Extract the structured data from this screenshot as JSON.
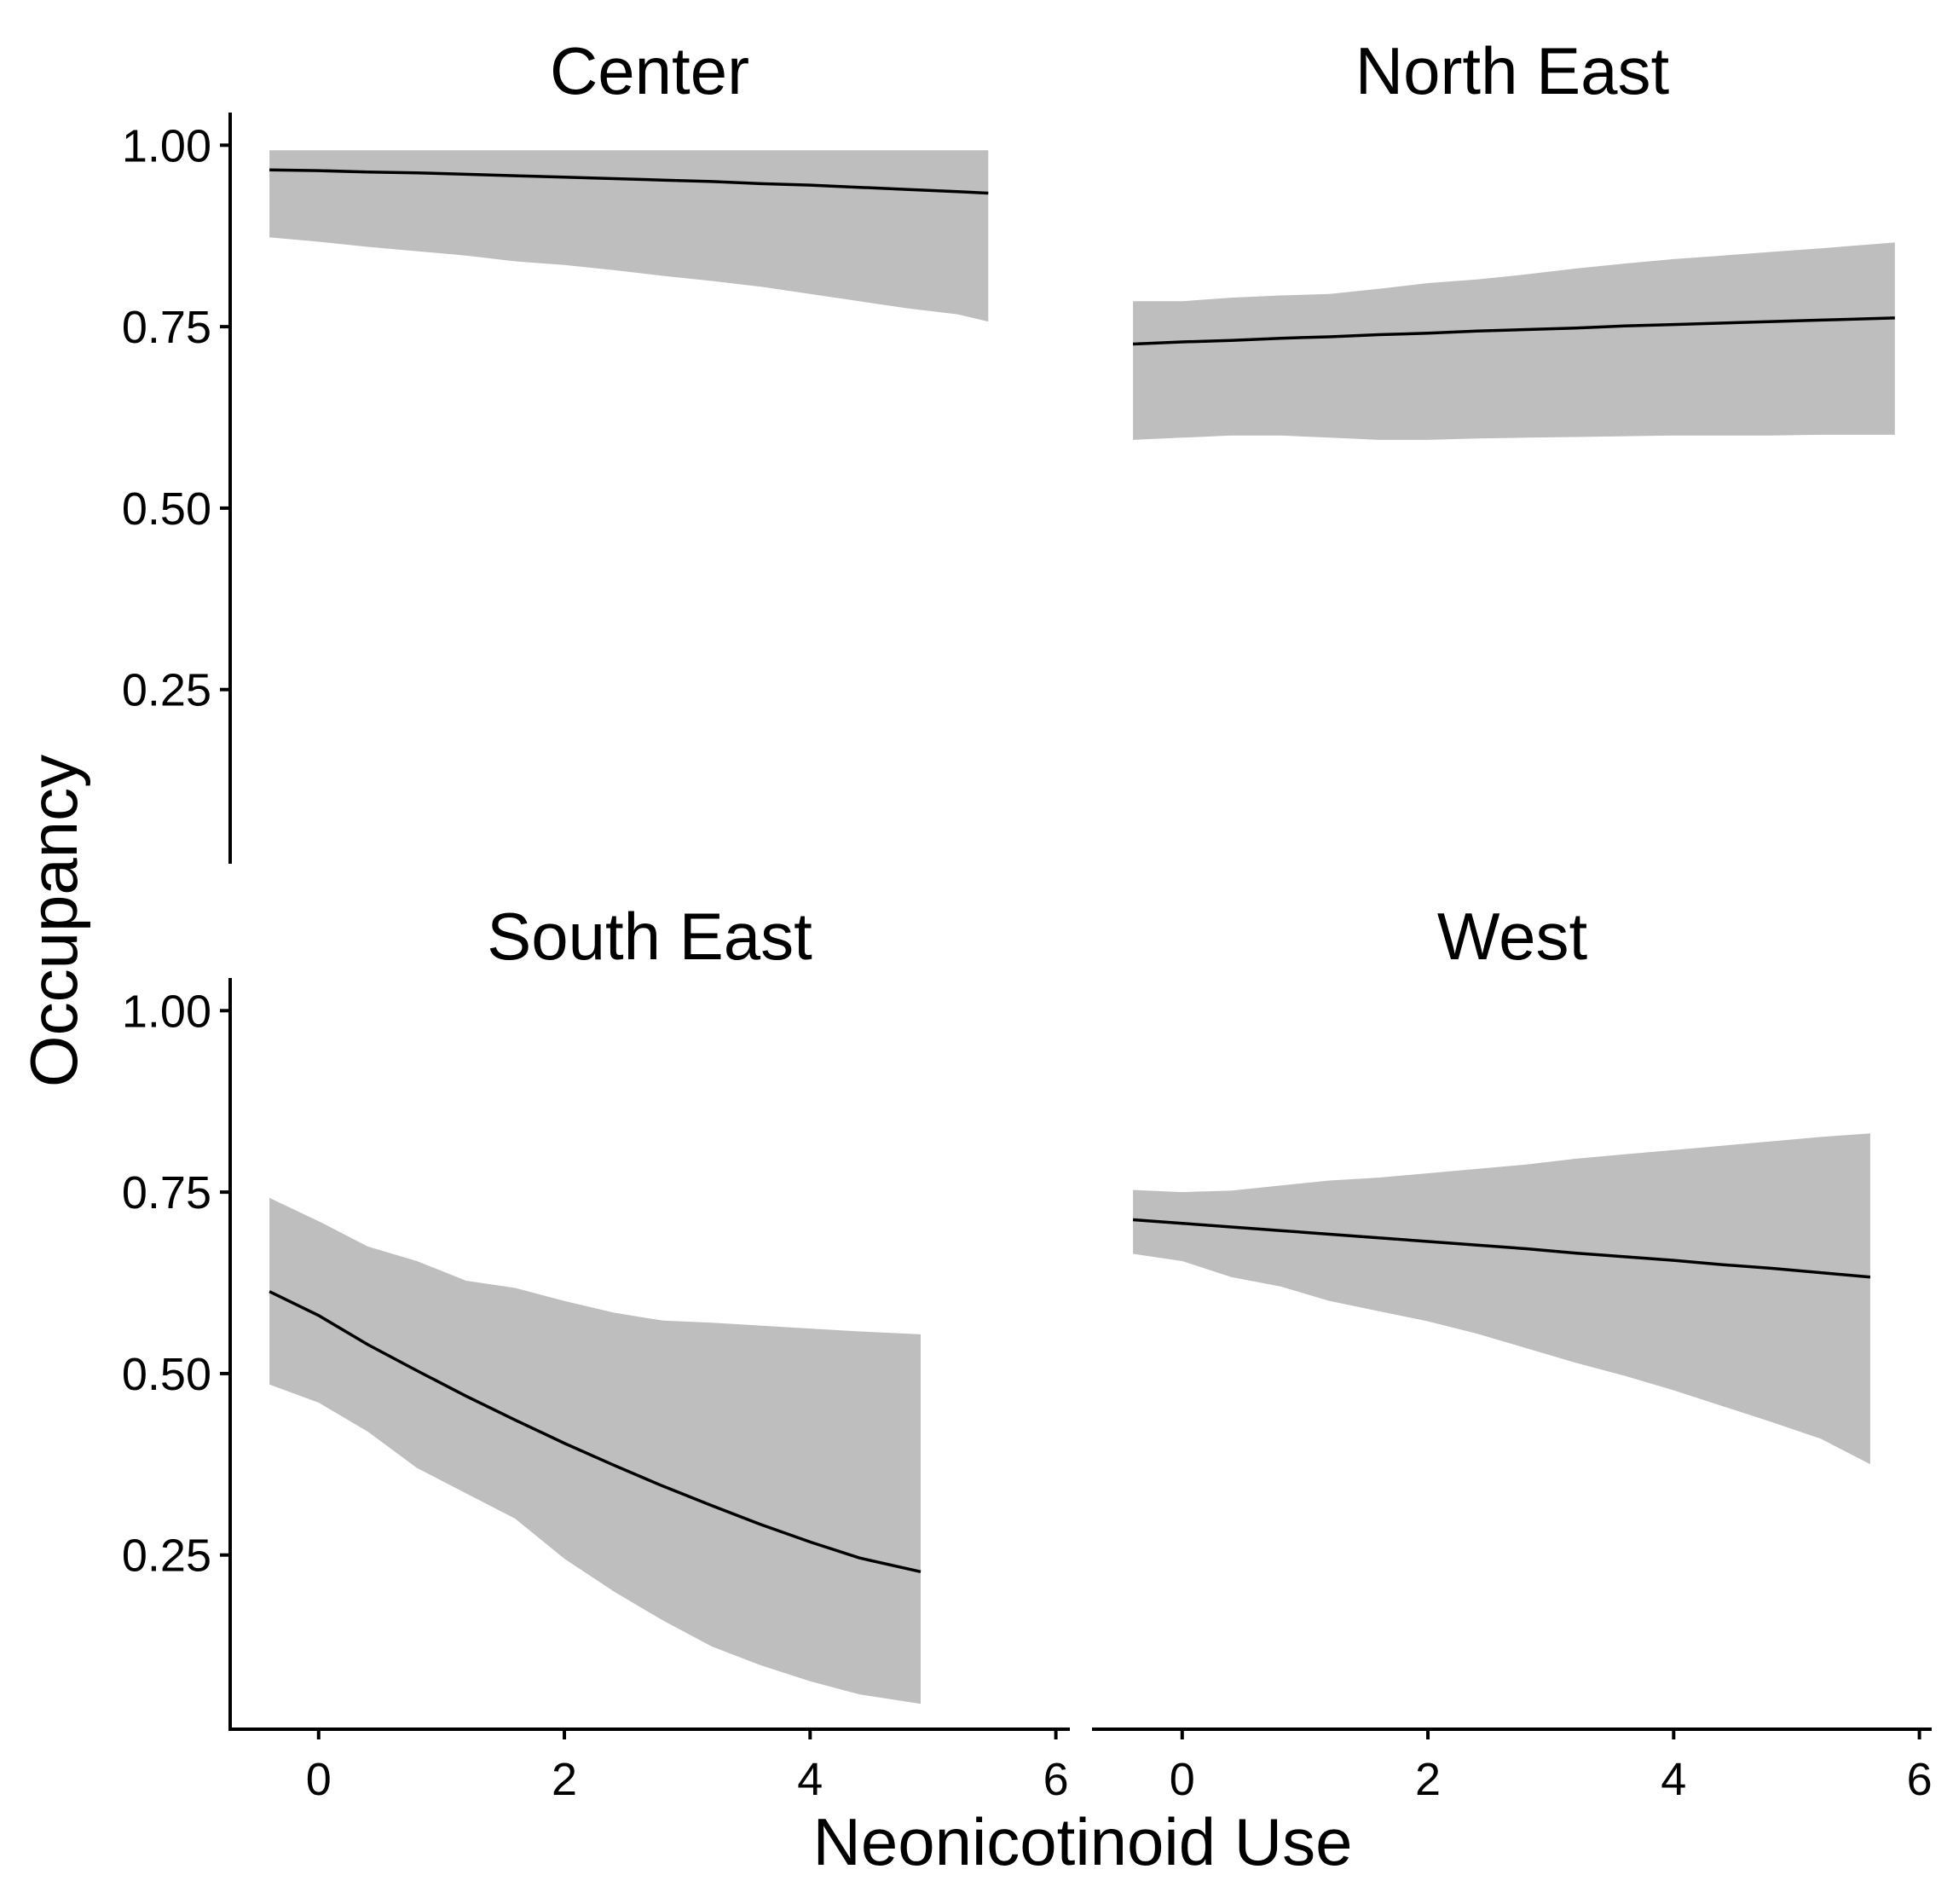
{
  "chart_data": {
    "type": "line",
    "xlabel": "Neonicotinoid Use",
    "ylabel": "Occupancy",
    "xlim": [
      -0.72,
      6.1
    ],
    "ylim": [
      0.01,
      1.045
    ],
    "x_ticks": [
      0,
      2,
      4,
      6
    ],
    "y_ticks": [
      0.25,
      0.5,
      0.75,
      1.0
    ],
    "y_tick_labels": [
      "0.25",
      "0.50",
      "0.75",
      "1.00"
    ],
    "grid": false,
    "colors": {
      "ribbon": "#bebebe",
      "line": "#000000",
      "axis": "#000000"
    },
    "panels": [
      {
        "title": "Center",
        "x": [
          -0.4,
          0,
          0.4,
          0.8,
          1.2,
          1.6,
          2,
          2.4,
          2.8,
          3.2,
          3.6,
          4,
          4.4,
          4.8,
          5.2,
          5.45
        ],
        "fit": [
          0.966,
          0.965,
          0.963,
          0.962,
          0.96,
          0.958,
          0.956,
          0.954,
          0.952,
          0.95,
          0.947,
          0.945,
          0.942,
          0.939,
          0.936,
          0.934
        ],
        "lower": [
          0.873,
          0.867,
          0.86,
          0.854,
          0.848,
          0.84,
          0.835,
          0.828,
          0.82,
          0.813,
          0.805,
          0.795,
          0.785,
          0.775,
          0.767,
          0.757
        ],
        "upper": [
          0.993,
          0.993,
          0.993,
          0.993,
          0.993,
          0.993,
          0.993,
          0.993,
          0.993,
          0.993,
          0.993,
          0.993,
          0.993,
          0.993,
          0.993,
          0.993
        ]
      },
      {
        "title": "North East",
        "x": [
          -0.4,
          0,
          0.4,
          0.8,
          1.2,
          1.6,
          2,
          2.4,
          2.8,
          3.2,
          3.6,
          4,
          4.4,
          4.8,
          5.2,
          5.8
        ],
        "fit": [
          0.726,
          0.729,
          0.731,
          0.734,
          0.736,
          0.739,
          0.741,
          0.744,
          0.746,
          0.748,
          0.751,
          0.753,
          0.755,
          0.757,
          0.759,
          0.762
        ],
        "lower": [
          0.594,
          0.597,
          0.6,
          0.6,
          0.597,
          0.594,
          0.594,
          0.596,
          0.597,
          0.598,
          0.599,
          0.6,
          0.6,
          0.6,
          0.601,
          0.601
        ],
        "upper": [
          0.785,
          0.785,
          0.79,
          0.793,
          0.795,
          0.802,
          0.81,
          0.815,
          0.822,
          0.83,
          0.837,
          0.843,
          0.848,
          0.853,
          0.858,
          0.866
        ]
      },
      {
        "title": "South East",
        "x": [
          -0.4,
          0,
          0.4,
          0.8,
          1.2,
          1.6,
          2,
          2.4,
          2.8,
          3.2,
          3.6,
          4,
          4.4,
          4.9
        ],
        "fit": [
          0.613,
          0.58,
          0.54,
          0.504,
          0.469,
          0.436,
          0.404,
          0.374,
          0.345,
          0.318,
          0.292,
          0.268,
          0.246,
          0.227
        ],
        "lower": [
          0.485,
          0.46,
          0.42,
          0.37,
          0.335,
          0.3,
          0.245,
          0.2,
          0.16,
          0.124,
          0.098,
          0.076,
          0.058,
          0.045
        ],
        "upper": [
          0.742,
          0.71,
          0.675,
          0.655,
          0.628,
          0.618,
          0.6,
          0.584,
          0.573,
          0.57,
          0.566,
          0.562,
          0.558,
          0.554
        ]
      },
      {
        "title": "West",
        "x": [
          -0.4,
          0,
          0.4,
          0.8,
          1.2,
          1.6,
          2,
          2.4,
          2.8,
          3.2,
          3.6,
          4,
          4.4,
          4.8,
          5.2,
          5.6
        ],
        "fit": [
          0.712,
          0.707,
          0.702,
          0.697,
          0.692,
          0.687,
          0.682,
          0.677,
          0.672,
          0.666,
          0.661,
          0.656,
          0.65,
          0.645,
          0.639,
          0.633
        ],
        "lower": [
          0.665,
          0.655,
          0.633,
          0.62,
          0.6,
          0.586,
          0.572,
          0.555,
          0.535,
          0.515,
          0.497,
          0.477,
          0.455,
          0.433,
          0.41,
          0.375
        ],
        "upper": [
          0.753,
          0.75,
          0.752,
          0.759,
          0.766,
          0.77,
          0.776,
          0.782,
          0.788,
          0.796,
          0.802,
          0.808,
          0.814,
          0.82,
          0.826,
          0.831
        ]
      }
    ]
  }
}
